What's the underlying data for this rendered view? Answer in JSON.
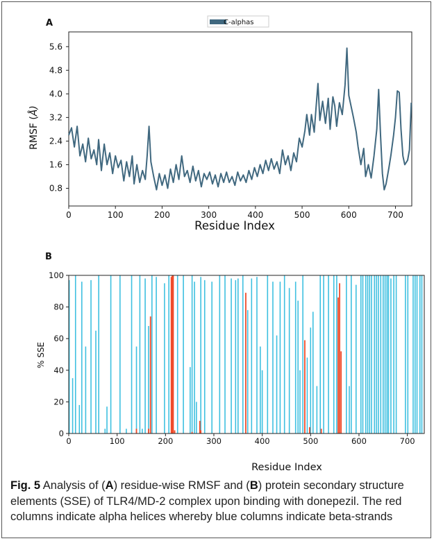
{
  "panels": {
    "a_label": "A",
    "b_label": "B"
  },
  "caption": {
    "label": "Fig. 5",
    "part1": " Analysis of (",
    "ref_a": "A",
    "part2": ") residue-wise RMSF and (",
    "ref_b": "B",
    "part3": ") protein secondary structure elements (SSE) of TLR4/MD-2 complex upon binding with donepezil. The red columns indicate alpha helices whereby blue columns indicate beta-strands"
  },
  "colors": {
    "rmsf_line": "#40687f",
    "helix": "#ef4b2a",
    "strand": "#3ec0e0"
  },
  "chart_data": [
    {
      "type": "line",
      "xlabel": "Residue Index",
      "ylabel_prefix": "RMSF (",
      "ylabel_unit": "Å)",
      "xlim": [
        0,
        735
      ],
      "ylim": [
        0.2,
        6.1
      ],
      "xticks": [
        0,
        100,
        200,
        300,
        400,
        500,
        600,
        700
      ],
      "yticks": [
        0.8,
        1.6,
        2.4,
        3.2,
        4.0,
        4.8,
        5.6
      ],
      "ytick_labels": [
        "0.8",
        "1.6",
        "2.4",
        "3.2",
        "4.0",
        "4.8",
        "5.6"
      ],
      "legend": "top-center",
      "series": [
        {
          "name": "C-alphas",
          "points": [
            [
              0,
              2.6
            ],
            [
              6,
              2.85
            ],
            [
              12,
              2.2
            ],
            [
              18,
              2.9
            ],
            [
              24,
              1.9
            ],
            [
              30,
              2.3
            ],
            [
              36,
              1.7
            ],
            [
              42,
              2.5
            ],
            [
              48,
              1.8
            ],
            [
              54,
              2.1
            ],
            [
              60,
              1.6
            ],
            [
              64,
              2.45
            ],
            [
              70,
              1.4
            ],
            [
              76,
              2.3
            ],
            [
              82,
              1.6
            ],
            [
              88,
              2.0
            ],
            [
              94,
              1.3
            ],
            [
              100,
              1.9
            ],
            [
              106,
              1.5
            ],
            [
              112,
              1.75
            ],
            [
              118,
              1.05
            ],
            [
              124,
              1.7
            ],
            [
              130,
              1.2
            ],
            [
              136,
              1.9
            ],
            [
              140,
              0.95
            ],
            [
              146,
              1.6
            ],
            [
              152,
              1.0
            ],
            [
              158,
              1.4
            ],
            [
              164,
              1.1
            ],
            [
              168,
              1.9
            ],
            [
              172,
              2.9
            ],
            [
              176,
              1.7
            ],
            [
              182,
              1.2
            ],
            [
              188,
              0.75
            ],
            [
              194,
              1.3
            ],
            [
              200,
              0.9
            ],
            [
              206,
              1.25
            ],
            [
              212,
              0.8
            ],
            [
              218,
              1.45
            ],
            [
              224,
              1.0
            ],
            [
              230,
              1.6
            ],
            [
              236,
              1.1
            ],
            [
              242,
              1.9
            ],
            [
              248,
              1.2
            ],
            [
              254,
              1.4
            ],
            [
              260,
              1.0
            ],
            [
              266,
              1.55
            ],
            [
              272,
              1.05
            ],
            [
              278,
              1.4
            ],
            [
              284,
              0.85
            ],
            [
              290,
              1.3
            ],
            [
              296,
              1.1
            ],
            [
              302,
              1.35
            ],
            [
              308,
              0.95
            ],
            [
              314,
              1.25
            ],
            [
              320,
              0.85
            ],
            [
              326,
              1.3
            ],
            [
              332,
              1.0
            ],
            [
              338,
              1.35
            ],
            [
              344,
              1.0
            ],
            [
              350,
              1.2
            ],
            [
              356,
              0.9
            ],
            [
              362,
              1.35
            ],
            [
              368,
              1.05
            ],
            [
              374,
              1.25
            ],
            [
              380,
              1.0
            ],
            [
              386,
              1.4
            ],
            [
              392,
              1.1
            ],
            [
              398,
              1.5
            ],
            [
              404,
              1.2
            ],
            [
              410,
              1.6
            ],
            [
              416,
              1.3
            ],
            [
              422,
              1.75
            ],
            [
              428,
              1.4
            ],
            [
              434,
              1.8
            ],
            [
              440,
              1.45
            ],
            [
              446,
              1.7
            ],
            [
              452,
              1.3
            ],
            [
              458,
              2.1
            ],
            [
              464,
              1.6
            ],
            [
              470,
              1.9
            ],
            [
              476,
              1.4
            ],
            [
              482,
              2.0
            ],
            [
              488,
              1.7
            ],
            [
              494,
              2.5
            ],
            [
              500,
              2.2
            ],
            [
              506,
              2.75
            ],
            [
              510,
              3.3
            ],
            [
              516,
              2.6
            ],
            [
              520,
              3.3
            ],
            [
              526,
              2.7
            ],
            [
              530,
              3.55
            ],
            [
              534,
              4.35
            ],
            [
              538,
              3.1
            ],
            [
              544,
              3.75
            ],
            [
              550,
              3.0
            ],
            [
              556,
              3.85
            ],
            [
              560,
              2.8
            ],
            [
              566,
              3.9
            ],
            [
              570,
              3.6
            ],
            [
              574,
              2.9
            ],
            [
              580,
              3.7
            ],
            [
              586,
              3.3
            ],
            [
              592,
              4.3
            ],
            [
              596,
              5.55
            ],
            [
              600,
              3.95
            ],
            [
              606,
              3.5
            ],
            [
              610,
              3.2
            ],
            [
              616,
              2.7
            ],
            [
              620,
              2.2
            ],
            [
              626,
              1.6
            ],
            [
              632,
              2.15
            ],
            [
              636,
              1.2
            ],
            [
              642,
              1.6
            ],
            [
              648,
              1.15
            ],
            [
              654,
              1.9
            ],
            [
              660,
              2.8
            ],
            [
              664,
              4.15
            ],
            [
              668,
              2.6
            ],
            [
              672,
              1.3
            ],
            [
              676,
              0.75
            ],
            [
              680,
              0.95
            ],
            [
              686,
              1.5
            ],
            [
              690,
              1.9
            ],
            [
              696,
              2.6
            ],
            [
              700,
              3.2
            ],
            [
              704,
              4.1
            ],
            [
              708,
              4.05
            ],
            [
              712,
              2.8
            ],
            [
              716,
              1.9
            ],
            [
              720,
              1.6
            ],
            [
              726,
              1.75
            ],
            [
              730,
              2.1
            ],
            [
              734,
              3.7
            ]
          ]
        }
      ]
    },
    {
      "type": "bar",
      "xlabel": "Residue Index",
      "ylabel": "% SSE",
      "xlim": [
        0,
        735
      ],
      "ylim": [
        0,
        100
      ],
      "xticks": [
        0,
        100,
        200,
        300,
        400,
        500,
        600,
        700
      ],
      "yticks": [
        0,
        20,
        40,
        60,
        80,
        100
      ],
      "series": [
        {
          "name": "beta-strands",
          "values": [
            [
              1,
              97
            ],
            [
              8,
              35
            ],
            [
              14,
              100
            ],
            [
              22,
              18
            ],
            [
              27,
              96
            ],
            [
              35,
              55
            ],
            [
              46,
              97
            ],
            [
              56,
              65
            ],
            [
              62,
              100
            ],
            [
              75,
              3
            ],
            [
              79,
              17
            ],
            [
              87,
              100
            ],
            [
              106,
              100
            ],
            [
              119,
              3
            ],
            [
              130,
              100
            ],
            [
              140,
              55
            ],
            [
              147,
              100
            ],
            [
              152,
              3
            ],
            [
              158,
              98
            ],
            [
              165,
              68
            ],
            [
              172,
              100
            ],
            [
              181,
              99
            ],
            [
              198,
              95
            ],
            [
              207,
              100
            ],
            [
              225,
              100
            ],
            [
              237,
              100
            ],
            [
              251,
              42
            ],
            [
              255,
              100
            ],
            [
              260,
              96
            ],
            [
              264,
              20
            ],
            [
              273,
              99
            ],
            [
              281,
              97
            ],
            [
              296,
              96
            ],
            [
              312,
              100
            ],
            [
              323,
              100
            ],
            [
              336,
              98
            ],
            [
              345,
              97
            ],
            [
              350,
              98
            ],
            [
              360,
              100
            ],
            [
              370,
              78
            ],
            [
              378,
              98
            ],
            [
              389,
              99
            ],
            [
              396,
              55
            ],
            [
              400,
              40
            ],
            [
              411,
              100
            ],
            [
              422,
              96
            ],
            [
              430,
              62
            ],
            [
              437,
              96
            ],
            [
              446,
              100
            ],
            [
              456,
              92
            ],
            [
              469,
              96
            ],
            [
              474,
              84
            ],
            [
              478,
              40
            ],
            [
              484,
              100
            ],
            [
              493,
              48
            ],
            [
              500,
              67
            ],
            [
              505,
              77
            ],
            [
              513,
              30
            ],
            [
              520,
              100
            ],
            [
              527,
              100
            ],
            [
              537,
              100
            ],
            [
              548,
              100
            ],
            [
              554,
              100
            ],
            [
              574,
              100
            ],
            [
              580,
              30
            ],
            [
              584,
              100
            ],
            [
              594,
              94
            ],
            [
              604,
              100
            ],
            [
              608,
              100
            ],
            [
              614,
              100
            ],
            [
              618,
              100
            ],
            [
              622,
              100
            ],
            [
              626,
              100
            ],
            [
              632,
              100
            ],
            [
              636,
              100
            ],
            [
              640,
              100
            ],
            [
              645,
              100
            ],
            [
              650,
              100
            ],
            [
              654,
              100
            ],
            [
              658,
              100
            ],
            [
              661,
              100
            ],
            [
              666,
              98
            ],
            [
              672,
              100
            ],
            [
              677,
              100
            ],
            [
              696,
              100
            ],
            [
              701,
              100
            ],
            [
              712,
              100
            ],
            [
              716,
              100
            ],
            [
              720,
              100
            ],
            [
              726,
              100
            ],
            [
              730,
              100
            ]
          ]
        },
        {
          "name": "alpha-helices",
          "values": [
            [
              140,
              3
            ],
            [
              165,
              3
            ],
            [
              169,
              74
            ],
            [
              212,
              99
            ],
            [
              214,
              100
            ],
            [
              216,
              100
            ],
            [
              219,
              2
            ],
            [
              255,
              1
            ],
            [
              271,
              8
            ],
            [
              273,
              2
            ],
            [
              366,
              89
            ],
            [
              488,
              59
            ],
            [
              498,
              4
            ],
            [
              522,
              3
            ],
            [
              557,
              86
            ],
            [
              560,
              95
            ],
            [
              563,
              52
            ]
          ]
        }
      ]
    }
  ]
}
